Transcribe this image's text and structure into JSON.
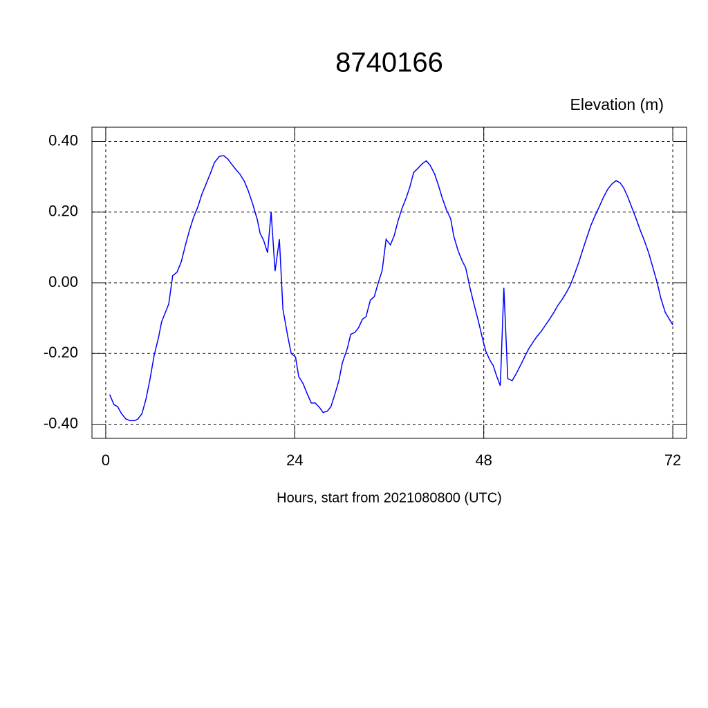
{
  "chart_data": {
    "type": "line",
    "title": "8740166",
    "y_label": "Elevation (m)",
    "x_label": "Hours, start from 2021080800 (UTC)",
    "color": "#0000ff",
    "grid": true,
    "xlim": [
      -1.75,
      73.75
    ],
    "ylim": [
      -0.44,
      0.44
    ],
    "xticks": [
      0,
      24,
      48,
      72
    ],
    "yticks": [
      {
        "value": 0.4,
        "label": "0.40"
      },
      {
        "value": 0.2,
        "label": "0.20"
      },
      {
        "value": 0,
        "label": "0.00"
      },
      {
        "value": -0.2,
        "label": "-0.20"
      },
      {
        "value": -0.4,
        "label": "-0.40"
      }
    ],
    "x": [
      0.5,
      1.05,
      1.5,
      2.0,
      2.55,
      3.1,
      3.7,
      4.1,
      4.6,
      5.1,
      5.6,
      6.15,
      6.7,
      7.1,
      7.55,
      8.0,
      8.5,
      9.05,
      9.6,
      10.1,
      10.65,
      11.15,
      11.7,
      12.2,
      12.75,
      13.3,
      13.8,
      14.4,
      14.95,
      15.5,
      16.0,
      16.55,
      17.05,
      17.6,
      18.1,
      18.7,
      19.25,
      19.6,
      20.05,
      20.55,
      21.0,
      21.5,
      22.05,
      22.5,
      23.1,
      23.55,
      24.1,
      24.5,
      25.05,
      25.6,
      26.1,
      26.6,
      27.15,
      27.6,
      28.15,
      28.6,
      29.1,
      29.6,
      30.05,
      30.7,
      31.1,
      31.65,
      32.1,
      32.6,
      33.05,
      33.6,
      34.1,
      34.55,
      35.1,
      35.6,
      36.15,
      36.65,
      37.1,
      37.6,
      38.15,
      38.6,
      39.1,
      39.65,
      40.15,
      40.7,
      41.2,
      41.75,
      42.2,
      42.7,
      43.25,
      43.8,
      44.2,
      44.75,
      45.3,
      45.7,
      46.25,
      46.75,
      47.3,
      47.8,
      48.25,
      48.8,
      49.2,
      49.65,
      50.1,
      50.55,
      51.05,
      51.6,
      52.1,
      52.65,
      53.2,
      53.7,
      54.25,
      54.75,
      55.3,
      55.8,
      56.35,
      56.9,
      57.4,
      57.95,
      58.45,
      59.0,
      59.5,
      60.05,
      60.55,
      61.1,
      61.6,
      62.15,
      62.7,
      63.2,
      63.75,
      64.25,
      64.8,
      65.3,
      65.75,
      66.3,
      66.8,
      67.35,
      67.85,
      68.4,
      68.95,
      69.45,
      70.0,
      70.5,
      71.05,
      72.0
    ],
    "values": [
      -0.316,
      -0.345,
      -0.35,
      -0.37,
      -0.385,
      -0.39,
      -0.39,
      -0.385,
      -0.37,
      -0.33,
      -0.275,
      -0.205,
      -0.155,
      -0.11,
      -0.085,
      -0.06,
      0.02,
      0.03,
      0.06,
      0.105,
      0.15,
      0.185,
      0.215,
      0.25,
      0.28,
      0.31,
      0.34,
      0.357,
      0.36,
      0.35,
      0.335,
      0.32,
      0.307,
      0.287,
      0.26,
      0.22,
      0.178,
      0.14,
      0.12,
      0.085,
      0.2,
      0.033,
      0.123,
      -0.075,
      -0.15,
      -0.2,
      -0.21,
      -0.265,
      -0.285,
      -0.315,
      -0.34,
      -0.34,
      -0.353,
      -0.367,
      -0.363,
      -0.35,
      -0.315,
      -0.277,
      -0.226,
      -0.184,
      -0.146,
      -0.14,
      -0.127,
      -0.103,
      -0.096,
      -0.049,
      -0.039,
      -0.004,
      0.035,
      0.123,
      0.107,
      0.135,
      0.174,
      0.209,
      0.24,
      0.27,
      0.312,
      0.324,
      0.336,
      0.345,
      0.332,
      0.308,
      0.279,
      0.242,
      0.207,
      0.181,
      0.131,
      0.09,
      0.06,
      0.043,
      -0.014,
      -0.06,
      -0.107,
      -0.154,
      -0.193,
      -0.22,
      -0.234,
      -0.265,
      -0.291,
      -0.014,
      -0.271,
      -0.277,
      -0.258,
      -0.234,
      -0.209,
      -0.187,
      -0.168,
      -0.152,
      -0.137,
      -0.121,
      -0.103,
      -0.084,
      -0.064,
      -0.047,
      -0.029,
      -0.006,
      0.023,
      0.057,
      0.092,
      0.129,
      0.162,
      0.191,
      0.217,
      0.242,
      0.265,
      0.279,
      0.289,
      0.283,
      0.269,
      0.242,
      0.213,
      0.181,
      0.15,
      0.119,
      0.084,
      0.045,
      0.002,
      -0.045,
      -0.084,
      -0.119
    ]
  }
}
